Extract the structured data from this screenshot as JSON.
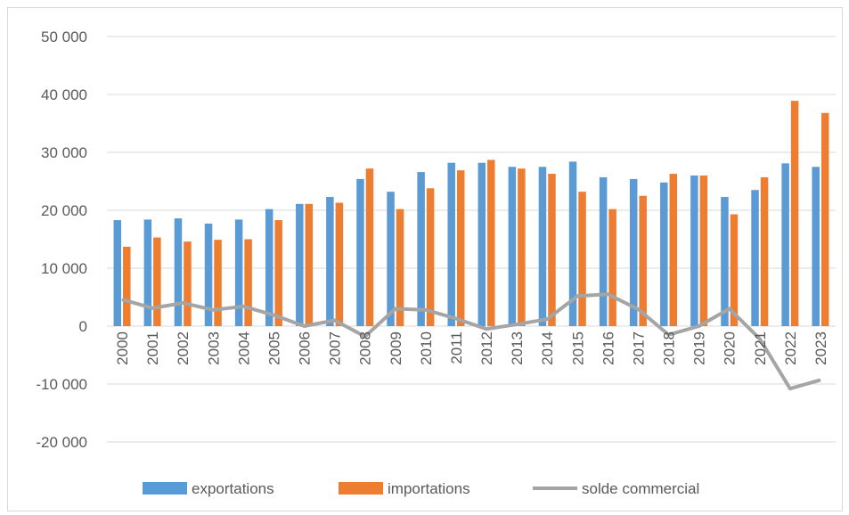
{
  "chart_data": {
    "type": "bar",
    "title": "",
    "xlabel": "",
    "ylabel": "",
    "categories": [
      "2000",
      "2001",
      "2002",
      "2003",
      "2004",
      "2005",
      "2006",
      "2007",
      "2008",
      "2009",
      "2010",
      "2011",
      "2012",
      "2013",
      "2014",
      "2015",
      "2016",
      "2017",
      "2018",
      "2019",
      "2020",
      "2021",
      "2022",
      "2023"
    ],
    "series": [
      {
        "name": "exportations",
        "kind": "bar",
        "color": "#5b9bd5",
        "values": [
          18300,
          18400,
          18600,
          17700,
          18400,
          20200,
          21100,
          22300,
          25400,
          23200,
          26600,
          28200,
          28200,
          27500,
          27500,
          28400,
          25700,
          25400,
          24800,
          26000,
          22300,
          23500,
          28100,
          27500
        ]
      },
      {
        "name": "importations",
        "kind": "bar",
        "color": "#ed7d31",
        "values": [
          13700,
          15300,
          14600,
          14900,
          15000,
          18300,
          21100,
          21300,
          27200,
          20200,
          23800,
          26900,
          28700,
          27200,
          26300,
          23200,
          20200,
          22500,
          26300,
          26000,
          19300,
          25700,
          38900,
          36800
        ]
      },
      {
        "name": "solde commercial",
        "kind": "line",
        "color": "#a5a5a5",
        "values": [
          4600,
          3100,
          4000,
          2800,
          3400,
          1900,
          0,
          1000,
          -1800,
          3000,
          2800,
          1300,
          -500,
          300,
          1200,
          5200,
          5500,
          2900,
          -1500,
          0,
          3000,
          -2200,
          -10800,
          -9300
        ]
      }
    ],
    "ylim": [
      -20000,
      50000
    ],
    "yticks": [
      -20000,
      -10000,
      0,
      10000,
      20000,
      30000,
      40000,
      50000
    ],
    "ytick_labels": [
      "-20 000",
      "-10 000",
      "0",
      "10 000",
      "20 000",
      "30 000",
      "40 000",
      "50 000"
    ],
    "grid": true,
    "legend_position": "bottom"
  }
}
